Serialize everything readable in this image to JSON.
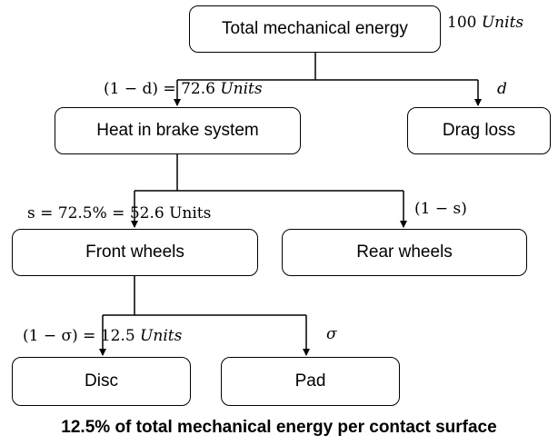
{
  "nodes": {
    "total": "Total mechanical energy",
    "heat": "Heat in brake system",
    "drag": "Drag loss",
    "front": "Front wheels",
    "rear": "Rear wheels",
    "disc": "Disc",
    "pad": "Pad"
  },
  "labels": {
    "total_value": "100",
    "total_unit": "Units",
    "heat_factor": "(1 − d) = 72.6",
    "heat_unit": "Units",
    "drag_factor": "d",
    "front_factor": "s = 72.5% = 52.6 Units",
    "rear_factor": "(1 − s)",
    "disc_factor": "(1 − σ) = 12.5",
    "disc_unit": "Units",
    "pad_factor": "σ"
  },
  "caption": "12.5% of total mechanical energy per contact surface"
}
